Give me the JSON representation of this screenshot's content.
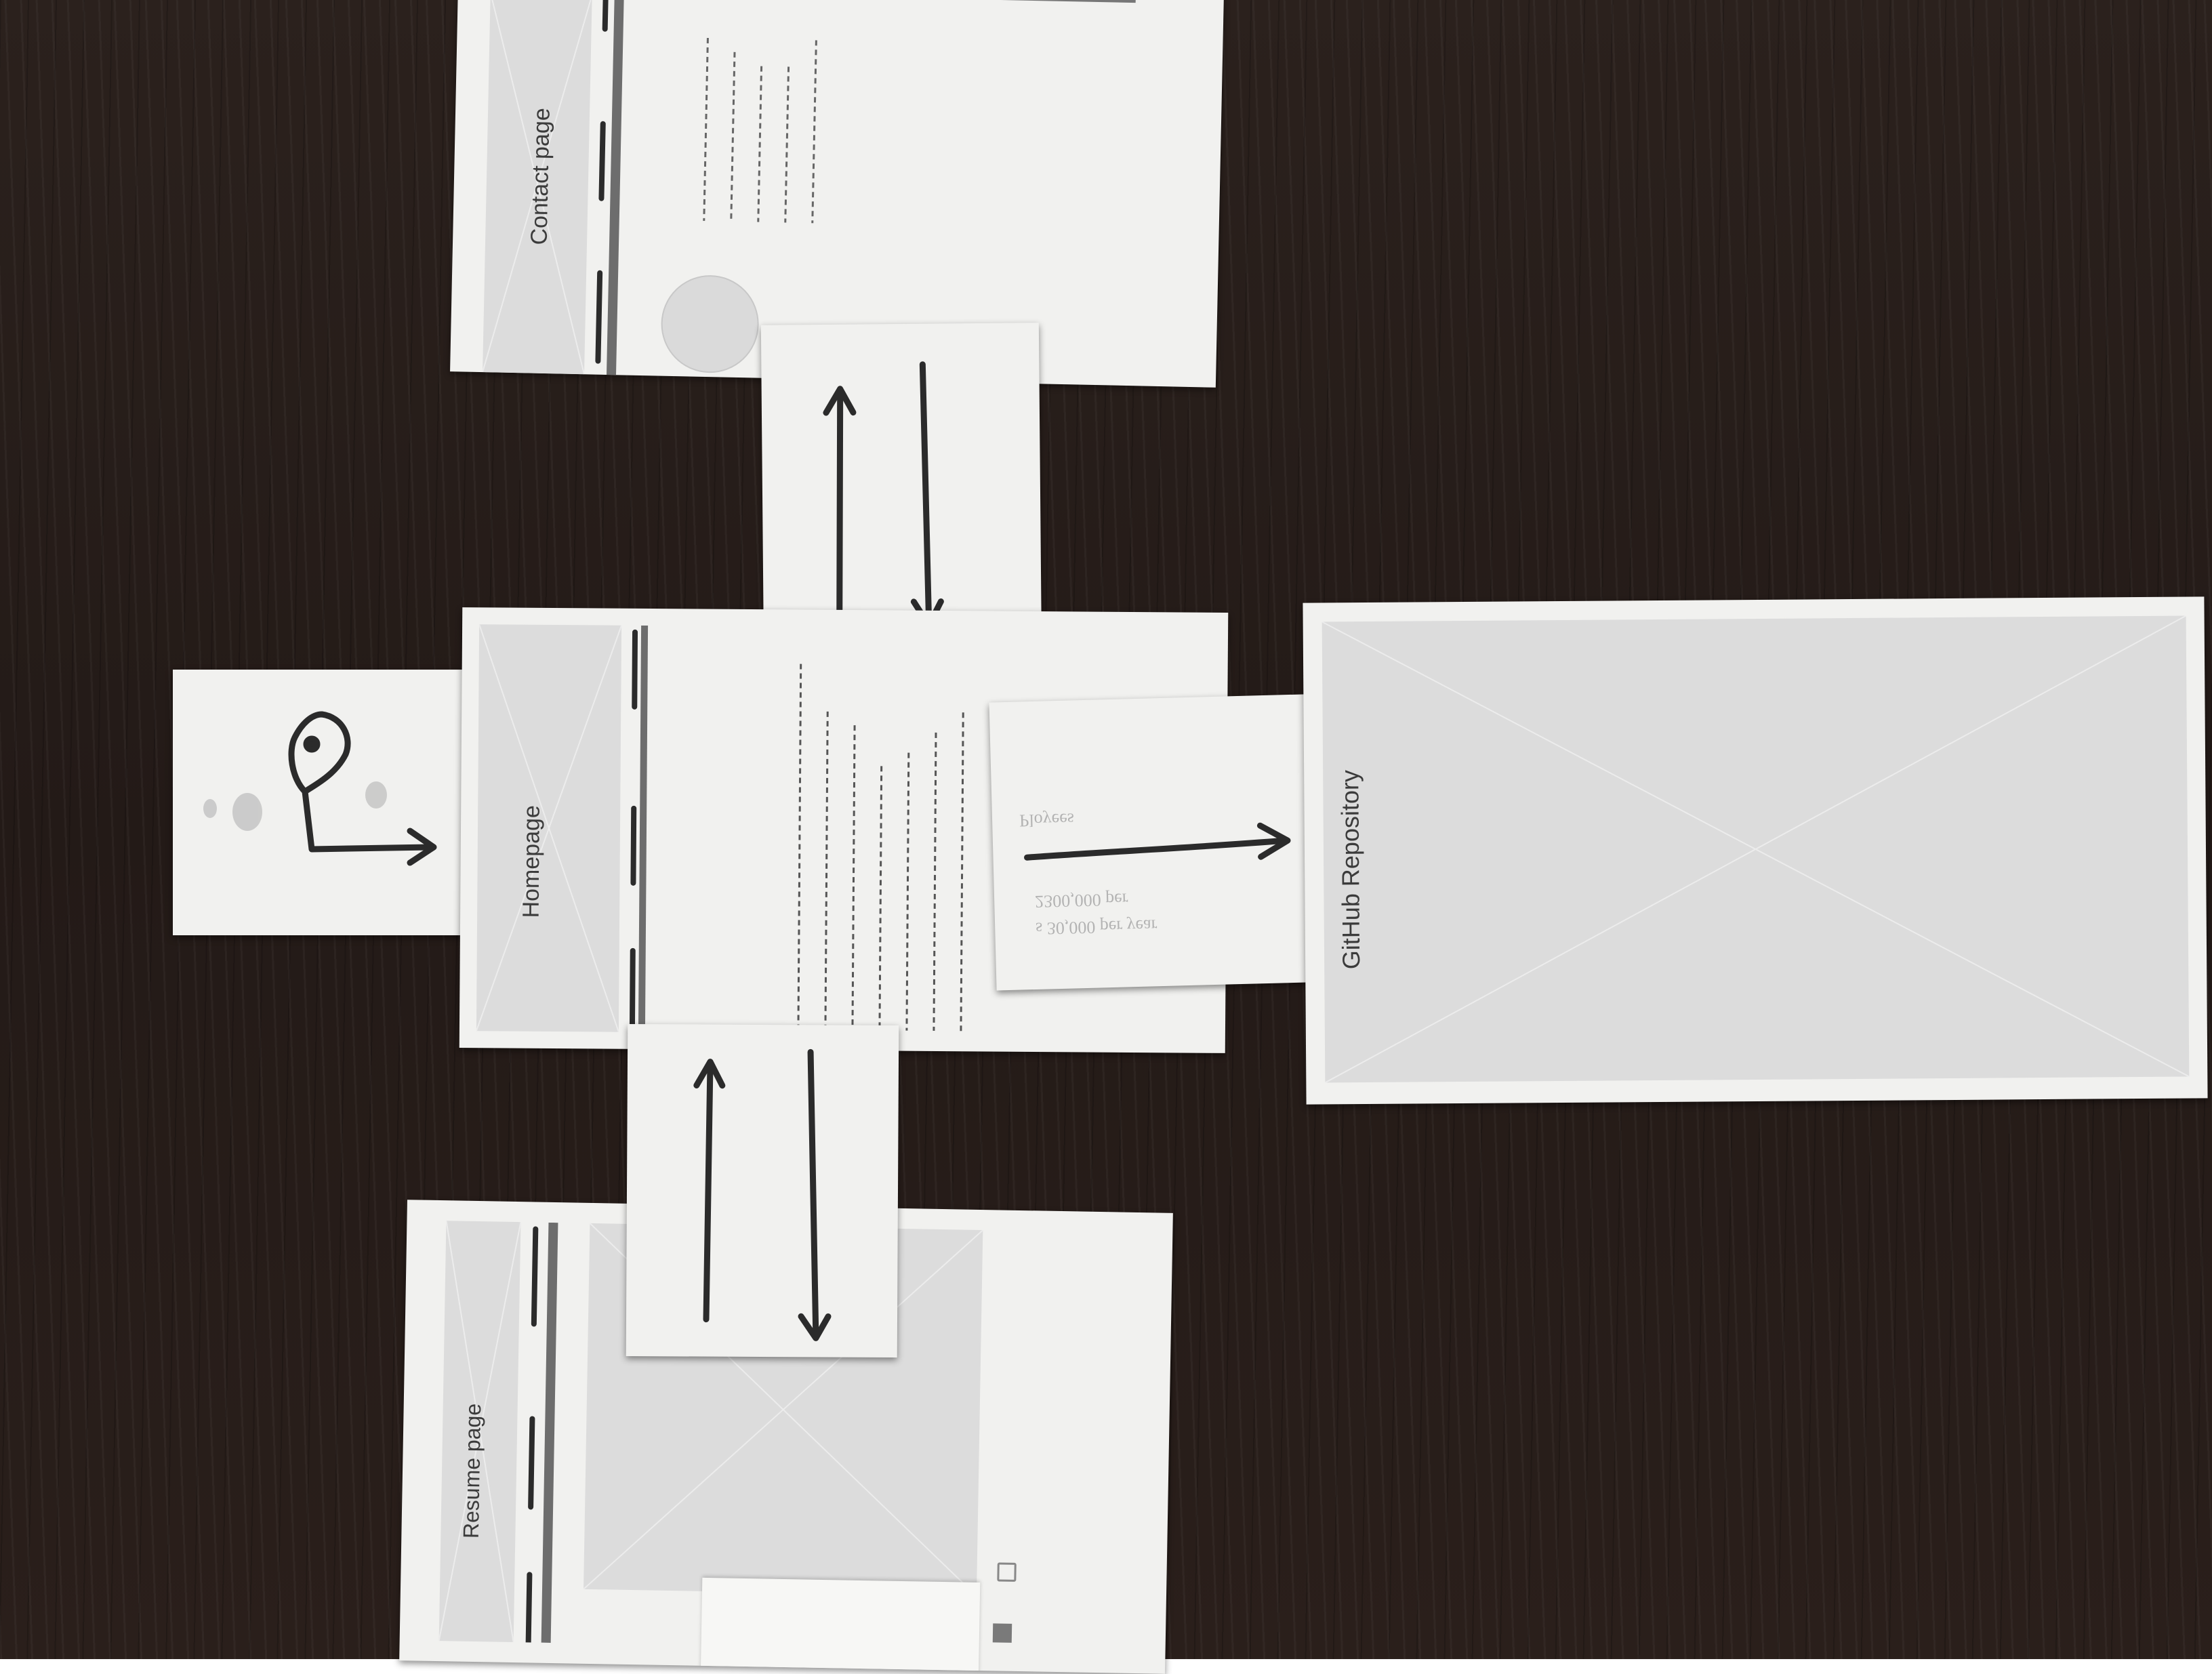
{
  "pages": {
    "contact": {
      "label": "Contact page"
    },
    "home": {
      "label": "Homepage"
    },
    "resume": {
      "label": "Resume page"
    },
    "github": {
      "label": "GitHub Repository"
    }
  },
  "bleed_text": {
    "line1": "s 30,000 per year",
    "line2": "2300,000 per",
    "line3": "Ployees"
  },
  "colors": {
    "desk": "#271d1a",
    "paper": "#f1f1ef",
    "placeholder": "#dcdcdc",
    "ink": "#2b2b2b"
  }
}
